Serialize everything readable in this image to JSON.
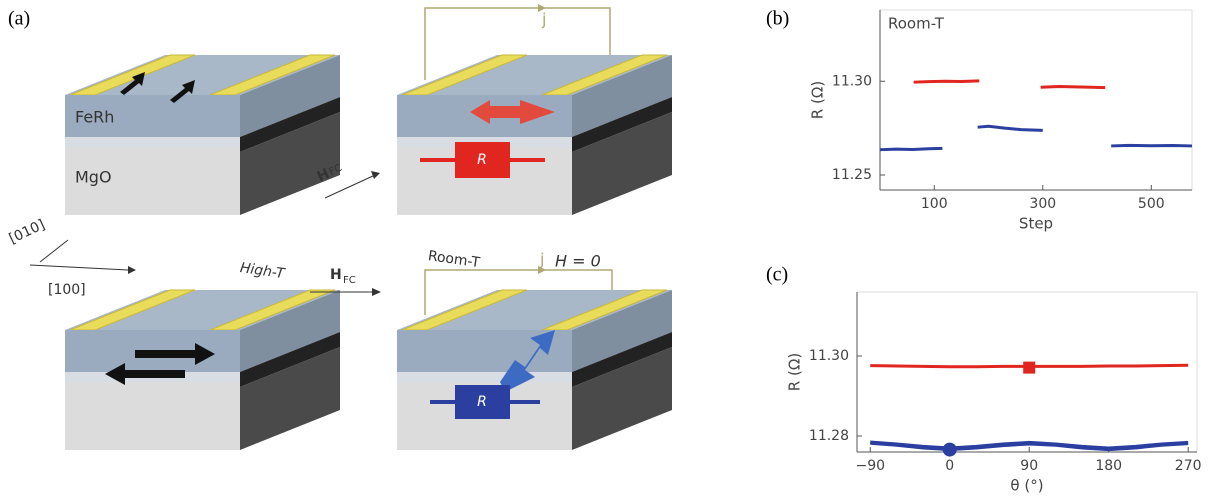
{
  "figure": {
    "panel_a": "(a)",
    "panel_b": "(b)",
    "panel_c": "(c)"
  },
  "diagram": {
    "ferh": "FeRh",
    "mgo": "MgO",
    "dir_010": "[010]",
    "dir_100": "[100]",
    "high_t": "High-T",
    "h_fc": "H",
    "h_fc_sub": "FC",
    "room_t": "Room-T",
    "current": "j",
    "h_zero": "H = 0",
    "resistor": "R"
  },
  "chart_data": [
    {
      "type": "line",
      "annotation": "Room-T",
      "xlabel": "Step",
      "ylabel": "R (Ω)",
      "xlim": [
        0,
        575
      ],
      "ylim": [
        11.242,
        11.338
      ],
      "xticks": [
        100,
        300,
        500
      ],
      "yticks": [
        11.25,
        {
          "value": 11.3,
          "label": "11.30"
        }
      ],
      "series": [
        {
          "color": "#2b3fa0",
          "x": [
            0,
            30,
            60,
            90,
            115
          ],
          "values": [
            11.2635,
            11.2638,
            11.2636,
            11.264,
            11.2642
          ]
        },
        {
          "color": "#e0261f",
          "x": [
            62,
            90,
            120,
            150,
            183
          ],
          "values": [
            11.2995,
            11.2998,
            11.3,
            11.2999,
            11.3002
          ]
        },
        {
          "color": "#2b3fa0",
          "x": [
            180,
            200,
            230,
            260,
            300
          ],
          "values": [
            11.2755,
            11.276,
            11.275,
            11.2742,
            11.2738
          ]
        },
        {
          "color": "#e0261f",
          "x": [
            296,
            330,
            360,
            390,
            415
          ],
          "values": [
            11.2968,
            11.2972,
            11.297,
            11.2968,
            11.2966
          ]
        },
        {
          "color": "#2b3fa0",
          "x": [
            426,
            460,
            500,
            540,
            575
          ],
          "values": [
            11.2655,
            11.2658,
            11.2656,
            11.2657,
            11.2655
          ]
        }
      ]
    },
    {
      "type": "line",
      "xlabel": "θ (°)",
      "ylabel": "R (Ω)",
      "xlim": [
        -105,
        280
      ],
      "ylim": [
        11.276,
        11.316
      ],
      "xticks": [
        {
          "value": -90,
          "label": "−90"
        },
        0,
        90,
        180,
        270
      ],
      "yticks": [
        {
          "value": 11.28,
          "label": "11.28"
        },
        {
          "value": 11.3,
          "label": "11.30"
        }
      ],
      "series": [
        {
          "color": "#e0261f",
          "x": [
            -90,
            -60,
            -30,
            0,
            30,
            60,
            90,
            120,
            150,
            180,
            210,
            240,
            270
          ],
          "values": [
            11.2976,
            11.2975,
            11.2974,
            11.2973,
            11.2973,
            11.2974,
            11.2974,
            11.2974,
            11.2974,
            11.2975,
            11.2975,
            11.2976,
            11.2977
          ]
        },
        {
          "color": "#2b3fa0",
          "x": [
            -90,
            -60,
            -30,
            0,
            30,
            60,
            90,
            120,
            150,
            180,
            210,
            240,
            270
          ],
          "values": [
            11.2785,
            11.278,
            11.2774,
            11.277,
            11.2774,
            11.278,
            11.2784,
            11.278,
            11.2774,
            11.277,
            11.2774,
            11.278,
            11.2784
          ]
        },
        {
          "color": "#2b3fa0",
          "x": [
            -90,
            -60,
            -30,
            0,
            30,
            60,
            90,
            120,
            150,
            180,
            210,
            240,
            270
          ],
          "values": [
            11.2782,
            11.2777,
            11.277,
            11.2766,
            11.277,
            11.2776,
            11.278,
            11.2777,
            11.277,
            11.2766,
            11.277,
            11.2777,
            11.2781
          ]
        },
        {
          "color": "#e0261f",
          "marker": "square",
          "x": [
            90
          ],
          "values": [
            11.2971
          ]
        },
        {
          "color": "#2b3fa0",
          "marker": "circle",
          "x": [
            0
          ],
          "values": [
            11.2766
          ]
        }
      ]
    }
  ]
}
